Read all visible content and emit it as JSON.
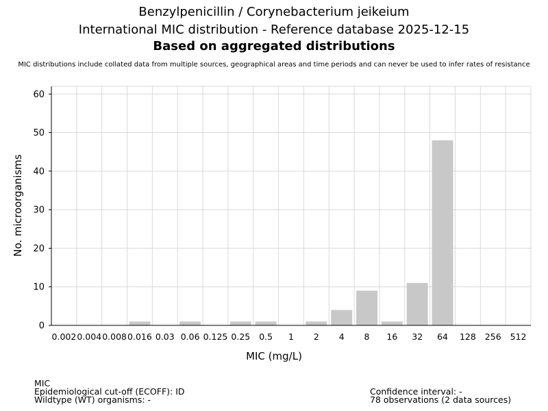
{
  "header": {
    "title_line1": "Benzylpenicillin / Corynebacterium jeikeium",
    "title_line2": "International MIC distribution - Reference database 2025-12-15",
    "title_line3": "Based on aggregated distributions",
    "subtitle": "MIC distributions include collated data from multiple sources, geographical areas and time periods and can never be used to infer rates of resistance"
  },
  "chart_data": {
    "type": "bar",
    "categories": [
      "0.002",
      "0.004",
      "0.008",
      "0.016",
      "0.03",
      "0.06",
      "0.125",
      "0.25",
      "0.5",
      "1",
      "2",
      "4",
      "8",
      "16",
      "32",
      "64",
      "128",
      "256",
      "512"
    ],
    "values": [
      0,
      0,
      0,
      1,
      0,
      1,
      0,
      1,
      1,
      0,
      1,
      4,
      9,
      1,
      11,
      48,
      0,
      0,
      0
    ],
    "xlabel": "MIC (mg/L)",
    "ylabel": "No. microorganisms",
    "ylim": [
      0,
      62
    ],
    "yticks": [
      0,
      10,
      20,
      30,
      40,
      50,
      60
    ],
    "grid": true,
    "bar_color": "#c8c8c8",
    "grid_color": "#d9d9d9"
  },
  "footer": {
    "left": [
      "MIC",
      "Epidemiological cut-off (ECOFF): ID",
      "Wildtype (WT) organisms:  -"
    ],
    "right": [
      "Confidence interval: -",
      "78 observations (2 data sources)"
    ]
  }
}
